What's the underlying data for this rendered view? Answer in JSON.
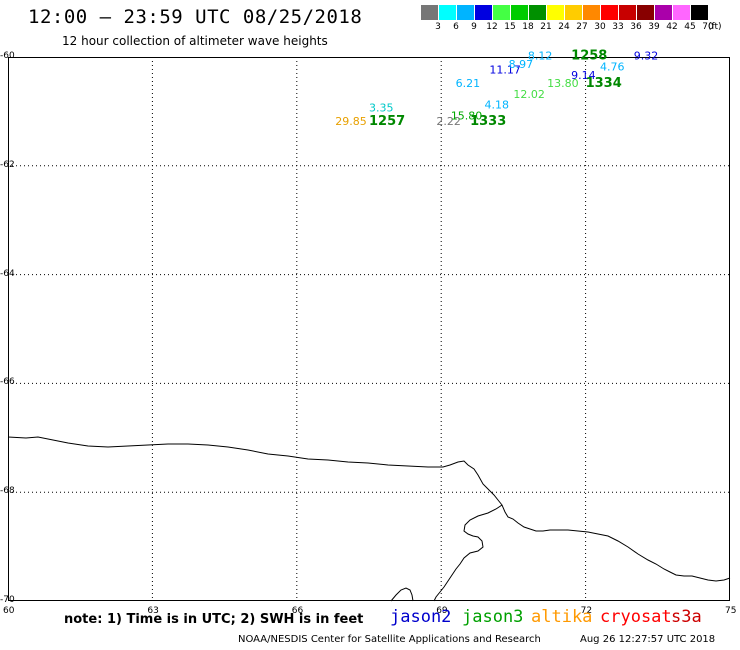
{
  "header": {
    "title": "12:00 – 23:59 UTC 08/25/2018",
    "subtitle": "12 hour collection of altimeter wave heights"
  },
  "legend": {
    "unit": "(ft)",
    "items": [
      {
        "label": "3",
        "color": "#777777"
      },
      {
        "label": "6",
        "color": "#00ffff"
      },
      {
        "label": "9",
        "color": "#00b4ff"
      },
      {
        "label": "12",
        "color": "#0000e0"
      },
      {
        "label": "15",
        "color": "#44ff44"
      },
      {
        "label": "18",
        "color": "#00cc00"
      },
      {
        "label": "21",
        "color": "#009000"
      },
      {
        "label": "24",
        "color": "#ffff00"
      },
      {
        "label": "27",
        "color": "#ffcc00"
      },
      {
        "label": "30",
        "color": "#ff8800"
      },
      {
        "label": "33",
        "color": "#ff0000"
      },
      {
        "label": "36",
        "color": "#c80000"
      },
      {
        "label": "39",
        "color": "#880000"
      },
      {
        "label": "42",
        "color": "#aa00aa"
      },
      {
        "label": "45",
        "color": "#ff66ff"
      },
      {
        "label": "70",
        "color": "#000000"
      }
    ]
  },
  "map": {
    "lon_range": [
      60,
      75
    ],
    "lat_range": [
      -70,
      -60
    ],
    "lat_labels": [
      "-60",
      "-62",
      "-64",
      "-66",
      "-68",
      "-70"
    ],
    "lon_labels": [
      "60",
      "63",
      "66",
      "69",
      "72",
      "75"
    ],
    "grid": "dotted"
  },
  "observations": [
    {
      "text": "29.85",
      "lon": 66.8,
      "lat": -61.25,
      "color": "#e8a000",
      "bold": false
    },
    {
      "text": "3.35",
      "lon": 67.5,
      "lat": -61.0,
      "color": "#00c8c8",
      "bold": false
    },
    {
      "text": "1257",
      "lon": 67.5,
      "lat": -61.25,
      "color": "#008800",
      "bold": true
    },
    {
      "text": "2.22",
      "lon": 68.9,
      "lat": -61.25,
      "color": "#777777",
      "bold": false
    },
    {
      "text": "15.80",
      "lon": 69.2,
      "lat": -61.15,
      "color": "#00aa00",
      "bold": false
    },
    {
      "text": "1333",
      "lon": 69.6,
      "lat": -61.25,
      "color": "#008800",
      "bold": true
    },
    {
      "text": "4.18",
      "lon": 69.9,
      "lat": -60.95,
      "color": "#00b4ff",
      "bold": false
    },
    {
      "text": "6.21",
      "lon": 69.3,
      "lat": -60.55,
      "color": "#00b4ff",
      "bold": false
    },
    {
      "text": "12.02",
      "lon": 70.5,
      "lat": -60.75,
      "color": "#44dd44",
      "bold": false
    },
    {
      "text": "11.17",
      "lon": 70.0,
      "lat": -60.3,
      "color": "#0000e0",
      "bold": false
    },
    {
      "text": "8.97",
      "lon": 70.4,
      "lat": -60.2,
      "color": "#00b4ff",
      "bold": false
    },
    {
      "text": "8.12",
      "lon": 70.8,
      "lat": -60.05,
      "color": "#00b4ff",
      "bold": false
    },
    {
      "text": "13.80",
      "lon": 71.2,
      "lat": -60.55,
      "color": "#44dd44",
      "bold": false
    },
    {
      "text": "1258",
      "lon": 71.7,
      "lat": -60.05,
      "color": "#008800",
      "bold": true
    },
    {
      "text": "9.14",
      "lon": 71.7,
      "lat": -60.4,
      "color": "#0000e0",
      "bold": false
    },
    {
      "text": "1334",
      "lon": 72.0,
      "lat": -60.55,
      "color": "#008800",
      "bold": true
    },
    {
      "text": "4.76",
      "lon": 72.3,
      "lat": -60.25,
      "color": "#00b4ff",
      "bold": false
    },
    {
      "text": "9.32",
      "lon": 73.0,
      "lat": -60.05,
      "color": "#0000e0",
      "bold": false
    }
  ],
  "notes": {
    "note": "note: 1) Time is in UTC; 2) SWH is in feet",
    "credit": "NOAA/NESDIS Center for Satellite Applications and Research",
    "timestamp": "Aug 26 12:27:57 UTC 2018"
  },
  "satellites": [
    {
      "name": "jason2",
      "color": "#0000cc"
    },
    {
      "name": "jason3",
      "color": "#00a000"
    },
    {
      "name": "altika",
      "color": "#ff9900"
    },
    {
      "name": "cryosat",
      "color": "#ff0000"
    },
    {
      "name": "s3a",
      "color": "#cc0000"
    }
  ]
}
